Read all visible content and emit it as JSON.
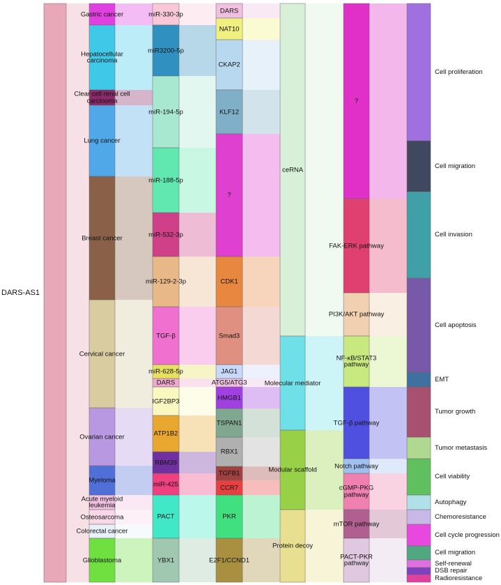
{
  "columns": [
    {
      "nodes": [
        {
          "label": "DARS-AS1",
          "color": "#e8a8b8"
        }
      ]
    },
    {
      "nodes": [
        {
          "label": "Gastric cancer",
          "color": "#e040e0"
        },
        {
          "label": "Hepatocellular carcinoma",
          "color": "#40c8e8"
        },
        {
          "label": "Clear cell renal cell carcinoma",
          "color": "#8a2a6a"
        },
        {
          "label": "Lung cancer",
          "color": "#50a8e8"
        },
        {
          "label": "Breast cancer",
          "color": "#8a6048"
        },
        {
          "label": "Cervical cancer",
          "color": "#d8cca0"
        },
        {
          "label": "Ovarian cancer",
          "color": "#b898e0"
        },
        {
          "label": "Myeloma",
          "color": "#5070d8"
        },
        {
          "label": "Acute myeloid leukemia",
          "color": "#f0c0e0"
        },
        {
          "label": "Osteosarcoma",
          "color": "#f8d8e8"
        },
        {
          "label": "Colorectal cancer",
          "color": "#e8f0f8"
        },
        {
          "label": "Glioblastoma",
          "color": "#70e040"
        }
      ]
    },
    {
      "nodes": [
        {
          "label": "miR-330-3p",
          "color": "#f8c8d8"
        },
        {
          "label": "miR3200-5p",
          "color": "#3090c0"
        },
        {
          "label": "miR-194-5p",
          "color": "#a8e8d0"
        },
        {
          "label": "miR-188-5p",
          "color": "#60e8b0"
        },
        {
          "label": "miR-532-3p",
          "color": "#d04088"
        },
        {
          "label": "miR-129-2-3p",
          "color": "#e8b888"
        },
        {
          "label": "TGF-β",
          "color": "#f070d0"
        },
        {
          "label": "miR-628-5p",
          "color": "#e8e060"
        },
        {
          "label": "DARS",
          "color": "#f0a8d0"
        },
        {
          "label": "IGF2BP3",
          "color": "#f8f8c0"
        },
        {
          "label": "ATP1B2",
          "color": "#e8a830"
        },
        {
          "label": "RBM39",
          "color": "#7030a0"
        },
        {
          "label": "miR-425",
          "color": "#f04080"
        },
        {
          "label": "PACT",
          "color": "#40e8c8"
        },
        {
          "label": "YBX1",
          "color": "#a0c8b0"
        }
      ]
    },
    {
      "nodes": [
        {
          "label": "DARS",
          "color": "#f0c0e0"
        },
        {
          "label": "NAT10",
          "color": "#f0f080"
        },
        {
          "label": "CKAP2",
          "color": "#b8d8f0"
        },
        {
          "label": "KLF12",
          "color": "#80b0c8"
        },
        {
          "label": "?",
          "color": "#e040d0"
        },
        {
          "label": "CDK1",
          "color": "#e88840"
        },
        {
          "label": "Smad3",
          "color": "#e09080"
        },
        {
          "label": "JAG1",
          "color": "#c8d8f8"
        },
        {
          "label": "ATG5/ATG3",
          "color": "#f0c0e0"
        },
        {
          "label": "HMGB1",
          "color": "#a040e0"
        },
        {
          "label": "TSPAN1",
          "color": "#80a890"
        },
        {
          "label": "RBX1",
          "color": "#b0b0b0"
        },
        {
          "label": "TGFB1",
          "color": "#a04040"
        },
        {
          "label": "CCR7",
          "color": "#e84040"
        },
        {
          "label": "PKR",
          "color": "#40e080"
        },
        {
          "label": "E2F1/CCND1",
          "color": "#a89040"
        }
      ]
    },
    {
      "nodes": [
        {
          "label": "ceRNA",
          "color": "#d8f0d8"
        },
        {
          "label": "Molecular mediator",
          "color": "#70e0e8"
        },
        {
          "label": "Modular scaffold",
          "color": "#98d048"
        },
        {
          "label": "Protein decoy",
          "color": "#e8e090"
        }
      ]
    },
    {
      "nodes": [
        {
          "label": "?",
          "color": "#e030c8"
        },
        {
          "label": "FAK-ERK pathway",
          "color": "#e04070"
        },
        {
          "label": "PI3K/AKT pathway",
          "color": "#f0d0b0"
        },
        {
          "label": "NF-κB/STAT3 pathway",
          "color": "#c8e880"
        },
        {
          "label": "TGF-β pathway",
          "color": "#5050e0"
        },
        {
          "label": "Notch pathway",
          "color": "#a0c0f0"
        },
        {
          "label": "cGMP-PKG pathway",
          "color": "#f080b0"
        },
        {
          "label": "mTOR pathway",
          "color": "#b06090"
        },
        {
          "label": "PACT-PKR pathway",
          "color": "#e0c8e0"
        }
      ]
    },
    {
      "nodes": [
        {
          "label": "Cell proliferation",
          "color": "#a070e0"
        },
        {
          "label": "Cell migration",
          "color": "#404860"
        },
        {
          "label": "Cell invasion",
          "color": "#40a0a8"
        },
        {
          "label": "Cell apoptosis",
          "color": "#7858a8"
        },
        {
          "label": "EMT",
          "color": "#4070a0"
        },
        {
          "label": "Tumor growth",
          "color": "#a85070"
        },
        {
          "label": "Tumor metastasis",
          "color": "#b0d890"
        },
        {
          "label": "Cell viability",
          "color": "#60c060"
        },
        {
          "label": "Autophagy",
          "color": "#b0e0e8"
        },
        {
          "label": "Chemoresistance",
          "color": "#c8b8e8"
        },
        {
          "label": "Cell cycle progression",
          "color": "#e848e0"
        },
        {
          "label": "Cell migration",
          "color": "#50a880"
        },
        {
          "label": "Self-renewal",
          "color": "#e070e0"
        },
        {
          "label": "DSB repair",
          "color": "#8040c0"
        },
        {
          "label": "Radioresistance",
          "color": "#e040a0"
        }
      ]
    }
  ]
}
